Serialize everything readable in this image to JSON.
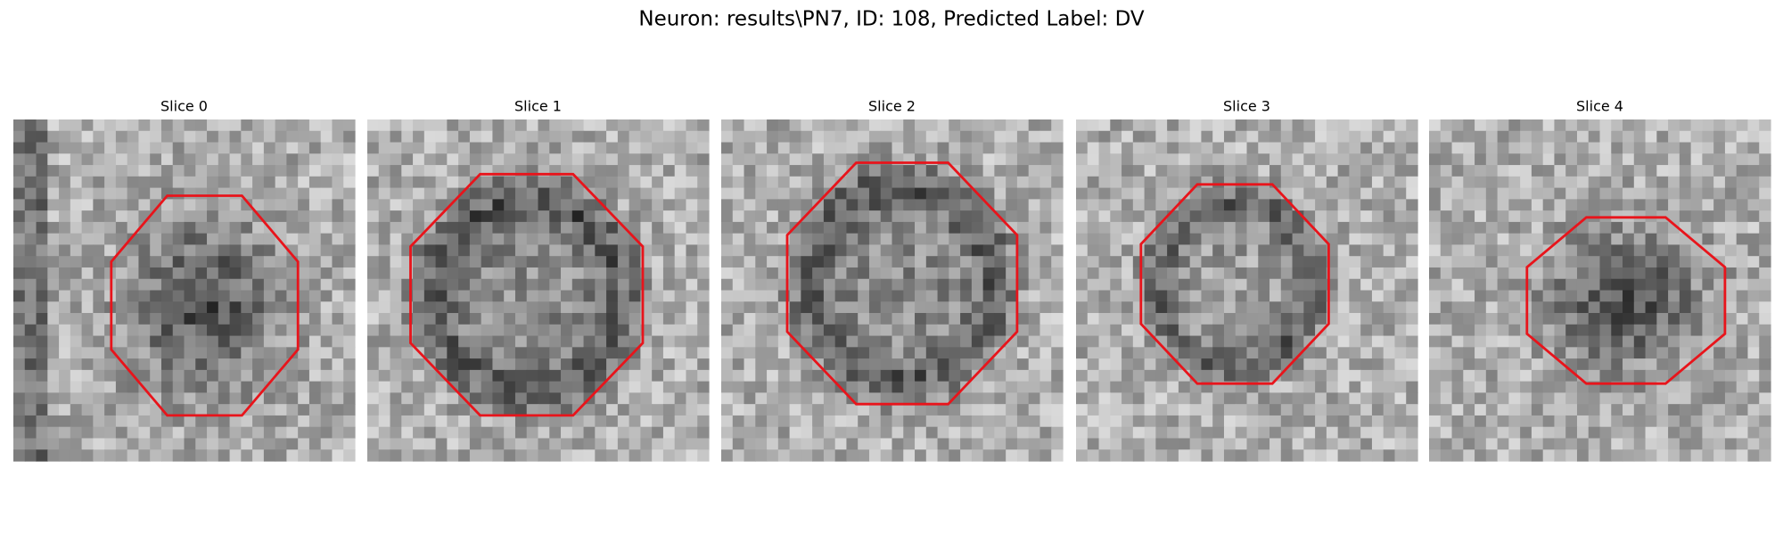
{
  "title": "Neuron: results\\PN7, ID: 108, Predicted Label: DV",
  "panels": [
    {
      "title": "Slice 0"
    },
    {
      "title": "Slice 1"
    },
    {
      "title": "Slice 2"
    },
    {
      "title": "Slice 3"
    },
    {
      "title": "Slice 4"
    }
  ]
}
